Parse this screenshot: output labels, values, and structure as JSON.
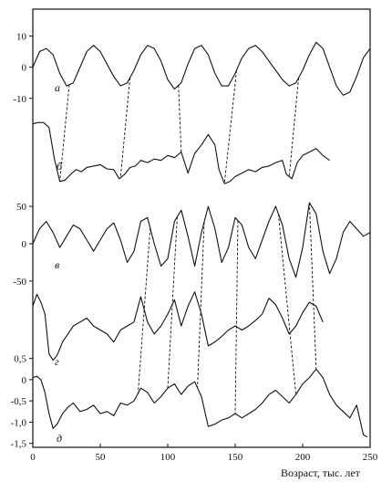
{
  "chart_data": {
    "type": "line",
    "xlabel": "Возраст, тыс. лет",
    "xlim": [
      0,
      250
    ],
    "x_ticks": [
      "0",
      "50",
      "100",
      "150",
      "200",
      "250"
    ],
    "x_tick_values": [
      0,
      50,
      100,
      150,
      200,
      250
    ],
    "panels": [
      {
        "id": "a",
        "label": "а",
        "yticks": [
          "10",
          "0",
          "-10"
        ],
        "ytick_values": [
          10,
          0,
          -10
        ],
        "ylim": [
          -13,
          11
        ],
        "x": [
          0,
          5,
          10,
          15,
          20,
          25,
          30,
          35,
          40,
          45,
          50,
          55,
          60,
          65,
          70,
          75,
          80,
          85,
          90,
          95,
          100,
          105,
          110,
          115,
          120,
          125,
          130,
          135,
          140,
          145,
          150,
          155,
          160,
          165,
          170,
          175,
          180,
          185,
          190,
          195,
          200,
          205,
          210,
          215,
          220,
          225,
          230,
          235,
          240,
          245,
          250
        ],
        "y": [
          0,
          5,
          6,
          4,
          -2,
          -6,
          -5,
          0,
          5,
          7,
          5,
          1,
          -3,
          -6,
          -5,
          -1,
          4,
          7,
          6,
          2,
          -4,
          -7,
          -5,
          1,
          6,
          7,
          4,
          -2,
          -6,
          -6,
          -2,
          3,
          6,
          7,
          5,
          2,
          -1,
          -4,
          -6,
          -5,
          -1,
          4,
          8,
          6,
          0,
          -6,
          -9,
          -8,
          -3,
          3,
          6
        ]
      },
      {
        "id": "b",
        "label": "б",
        "yticks": [],
        "ylim": [
          0,
          1
        ],
        "x": [
          0,
          4,
          8,
          12,
          16,
          20,
          24,
          28,
          32,
          36,
          40,
          45,
          50,
          55,
          60,
          64,
          68,
          72,
          76,
          80,
          85,
          90,
          95,
          100,
          105,
          110,
          115,
          120,
          125,
          130,
          135,
          138,
          142,
          146,
          150,
          155,
          160,
          165,
          170,
          175,
          180,
          185,
          188,
          192,
          196,
          200,
          205,
          210,
          215,
          220
        ],
        "y": [
          0.9,
          0.92,
          0.92,
          0.85,
          0.4,
          0.08,
          0.1,
          0.18,
          0.25,
          0.22,
          0.28,
          0.3,
          0.32,
          0.26,
          0.25,
          0.12,
          0.18,
          0.28,
          0.3,
          0.38,
          0.35,
          0.4,
          0.38,
          0.45,
          0.42,
          0.5,
          0.2,
          0.48,
          0.6,
          0.75,
          0.6,
          0.25,
          0.05,
          0.08,
          0.15,
          0.2,
          0.25,
          0.22,
          0.28,
          0.3,
          0.35,
          0.38,
          0.18,
          0.12,
          0.35,
          0.45,
          0.5,
          0.55,
          0.45,
          0.38
        ]
      },
      {
        "id": "v",
        "label": "в",
        "yticks": [
          "50",
          "0",
          "-50"
        ],
        "ytick_values": [
          50,
          0,
          -50
        ],
        "ylim": [
          -55,
          55
        ],
        "x": [
          0,
          5,
          10,
          15,
          20,
          25,
          30,
          35,
          40,
          45,
          50,
          55,
          60,
          65,
          70,
          75,
          80,
          85,
          90,
          95,
          100,
          105,
          110,
          115,
          120,
          125,
          130,
          135,
          140,
          145,
          150,
          155,
          160,
          165,
          170,
          175,
          180,
          185,
          190,
          195,
          200,
          205,
          210,
          215,
          220,
          225,
          230,
          235,
          240,
          245,
          250
        ],
        "y": [
          0,
          20,
          30,
          15,
          -5,
          10,
          25,
          20,
          5,
          -10,
          5,
          20,
          28,
          5,
          -25,
          -10,
          30,
          35,
          0,
          -30,
          -20,
          30,
          45,
          10,
          -30,
          15,
          50,
          20,
          -25,
          -5,
          35,
          25,
          -5,
          -20,
          5,
          30,
          50,
          25,
          -20,
          -45,
          -5,
          55,
          40,
          -10,
          -40,
          -20,
          15,
          30,
          20,
          10,
          15
        ]
      },
      {
        "id": "g",
        "label": "г",
        "yticks": [],
        "ylim": [
          0,
          1
        ],
        "x": [
          0,
          3,
          6,
          9,
          12,
          15,
          18,
          22,
          26,
          30,
          35,
          40,
          45,
          50,
          55,
          60,
          65,
          70,
          75,
          80,
          85,
          90,
          95,
          100,
          105,
          110,
          115,
          120,
          125,
          130,
          135,
          140,
          145,
          150,
          155,
          160,
          165,
          170,
          175,
          180,
          185,
          190,
          195,
          200,
          205,
          210,
          215
        ],
        "y": [
          0.8,
          0.95,
          0.85,
          0.7,
          0.2,
          0.12,
          0.18,
          0.35,
          0.45,
          0.55,
          0.6,
          0.65,
          0.55,
          0.5,
          0.45,
          0.35,
          0.5,
          0.55,
          0.6,
          0.92,
          0.6,
          0.45,
          0.55,
          0.7,
          0.88,
          0.55,
          0.8,
          0.98,
          0.7,
          0.3,
          0.35,
          0.42,
          0.5,
          0.55,
          0.5,
          0.55,
          0.62,
          0.7,
          0.9,
          0.82,
          0.65,
          0.45,
          0.55,
          0.72,
          0.85,
          0.8,
          0.6
        ]
      },
      {
        "id": "d",
        "label": "д",
        "yticks": [
          "0,5",
          "0",
          "-0,5",
          "-1,0",
          "-1,5"
        ],
        "ytick_values": [
          0.5,
          0,
          -0.5,
          -1,
          -1.5
        ],
        "ylim": [
          -1.55,
          0.6
        ],
        "x": [
          0,
          3,
          6,
          9,
          12,
          15,
          18,
          22,
          26,
          30,
          35,
          40,
          45,
          50,
          55,
          60,
          65,
          70,
          75,
          80,
          85,
          90,
          95,
          100,
          105,
          110,
          115,
          120,
          125,
          130,
          135,
          140,
          145,
          150,
          155,
          160,
          165,
          170,
          175,
          180,
          185,
          190,
          195,
          200,
          205,
          210,
          215,
          220,
          225,
          230,
          235,
          240,
          245,
          248
        ],
        "y": [
          0.05,
          0.08,
          0.0,
          -0.3,
          -0.8,
          -1.15,
          -1.05,
          -0.8,
          -0.65,
          -0.55,
          -0.75,
          -0.7,
          -0.6,
          -0.8,
          -0.75,
          -0.85,
          -0.55,
          -0.6,
          -0.5,
          -0.2,
          -0.3,
          -0.55,
          -0.4,
          -0.2,
          -0.1,
          -0.35,
          -0.15,
          -0.05,
          -0.4,
          -1.1,
          -1.05,
          -0.95,
          -0.9,
          -0.8,
          -0.9,
          -0.8,
          -0.7,
          -0.55,
          -0.35,
          -0.25,
          -0.4,
          -0.55,
          -0.35,
          -0.1,
          0.05,
          0.25,
          0.05,
          -0.35,
          -0.6,
          -0.75,
          -0.9,
          -0.6,
          -1.3,
          -1.35
        ]
      }
    ],
    "links": [
      {
        "from": "a",
        "to": "b",
        "x_from": 27,
        "x_to": 20
      },
      {
        "from": "a",
        "to": "b",
        "x_from": 72,
        "x_to": 65
      },
      {
        "from": "a",
        "to": "b",
        "x_from": 108,
        "x_to": 110
      },
      {
        "from": "a",
        "to": "b",
        "x_from": 151,
        "x_to": 142
      },
      {
        "from": "a",
        "to": "b",
        "x_from": 197,
        "x_to": 190
      },
      {
        "from": "v",
        "to": "d",
        "x_from": 87,
        "x_to": 78
      },
      {
        "from": "v",
        "to": "d",
        "x_from": 107,
        "x_to": 100
      },
      {
        "from": "v",
        "to": "d",
        "x_from": 127,
        "x_to": 122
      },
      {
        "from": "v",
        "to": "d",
        "x_from": 152,
        "x_to": 150
      },
      {
        "from": "v",
        "to": "d",
        "x_from": 182,
        "x_to": 195
      },
      {
        "from": "v",
        "to": "d",
        "x_from": 205,
        "x_to": 210
      }
    ]
  }
}
